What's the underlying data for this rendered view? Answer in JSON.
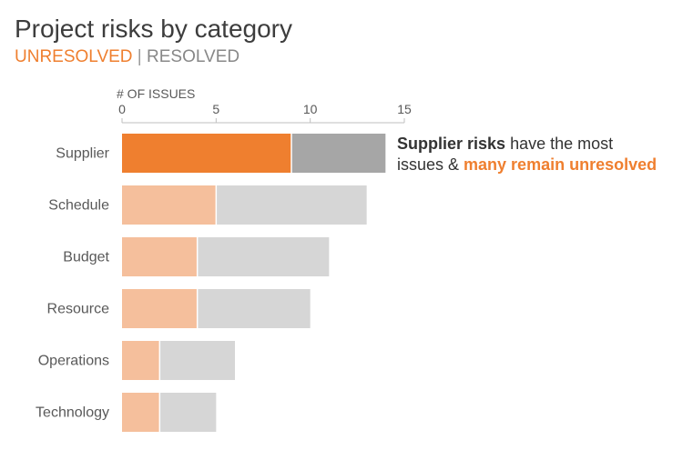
{
  "title": "Project risks by category",
  "legend": {
    "unresolved": "UNRESOLVED",
    "separator": "|",
    "resolved": "RESOLVED"
  },
  "colors": {
    "highlight_unresolved": "#ef7f2f",
    "highlight_resolved": "#a6a6a6",
    "unresolved": "#f5bf9c",
    "resolved": "#d6d6d6",
    "axis": "#bfbfbf",
    "label": "#595959"
  },
  "annotation": {
    "bold": "Supplier risks",
    "line1_rest": " have the most",
    "line2_start": "issues & ",
    "highlight": "many remain unresolved"
  },
  "chart_data": {
    "type": "bar",
    "orientation": "horizontal",
    "stacked": true,
    "xlabel": "# OF ISSUES",
    "xlim": [
      0,
      15
    ],
    "xticks": [
      "0",
      "5",
      "10",
      "15"
    ],
    "categories": [
      "Supplier",
      "Schedule",
      "Budget",
      "Resource",
      "Operations",
      "Technology"
    ],
    "highlighted_category": "Supplier",
    "series": [
      {
        "name": "UNRESOLVED",
        "values": [
          9,
          5,
          4,
          4,
          2,
          2
        ]
      },
      {
        "name": "RESOLVED",
        "values": [
          5,
          8,
          7,
          6,
          4,
          3
        ]
      }
    ]
  }
}
